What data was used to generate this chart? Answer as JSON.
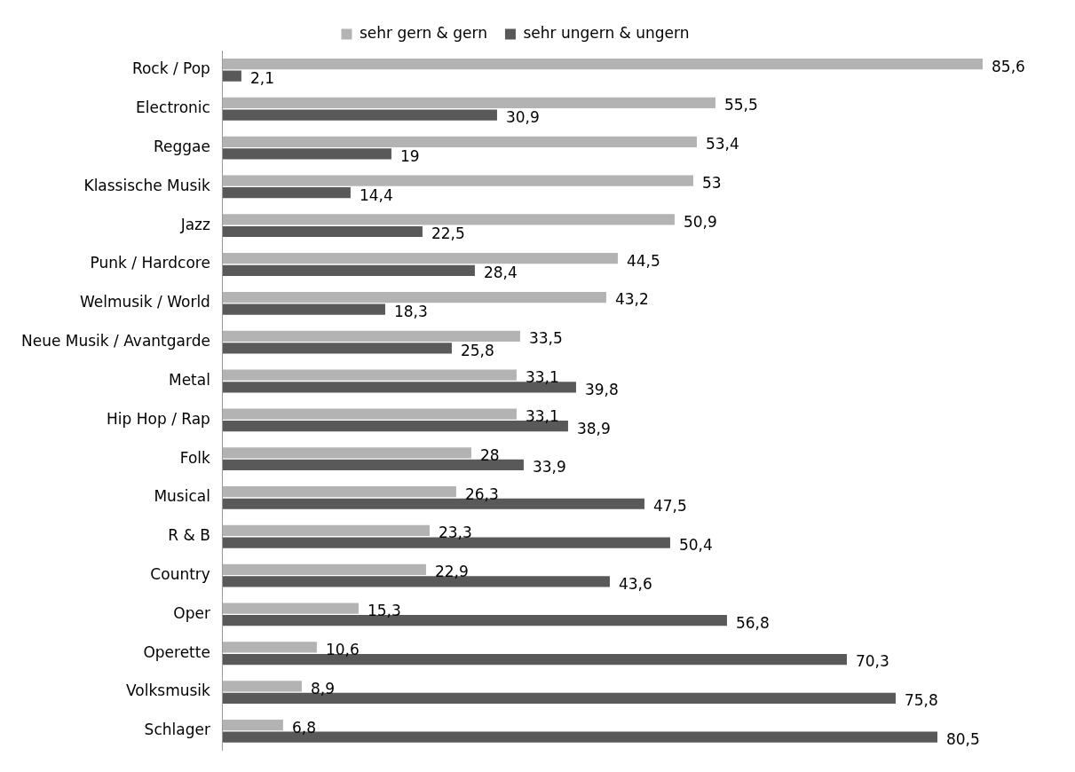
{
  "chart_data": {
    "type": "bar",
    "orientation": "horizontal",
    "categories": [
      "Rock / Pop",
      "Electronic",
      "Reggae",
      "Klassische Musik",
      "Jazz",
      "Punk / Hardcore",
      "Welmusik / World",
      "Neue Musik / Avantgarde",
      "Metal",
      "Hip Hop / Rap",
      "Folk",
      "Musical",
      "R & B",
      "Country",
      "Oper",
      "Operette",
      "Volksmusik",
      "Schlager"
    ],
    "series": [
      {
        "name": "sehr gern & gern",
        "color": "#b3b3b3",
        "values": [
          85.6,
          55.5,
          53.4,
          53,
          50.9,
          44.5,
          43.2,
          33.5,
          33.1,
          33.1,
          28,
          26.3,
          23.3,
          22.9,
          15.3,
          10.6,
          8.9,
          6.8
        ],
        "value_labels": [
          "85,6",
          "55,5",
          "53,4",
          "53",
          "50,9",
          "44,5",
          "43,2",
          "33,5",
          "33,1",
          "33,1",
          "28",
          "26,3",
          "23,3",
          "22,9",
          "15,3",
          "10,6",
          "8,9",
          "6,8"
        ]
      },
      {
        "name": "sehr ungern & ungern",
        "color": "#595959",
        "values": [
          2.1,
          30.9,
          19,
          14.4,
          22.5,
          28.4,
          18.3,
          25.8,
          39.8,
          38.9,
          33.9,
          47.5,
          50.4,
          43.6,
          56.8,
          70.3,
          75.8,
          80.5
        ],
        "value_labels": [
          "2,1",
          "30,9",
          "19",
          "14,4",
          "22,5",
          "28,4",
          "18,3",
          "25,8",
          "39,8",
          "38,9",
          "33,9",
          "47,5",
          "50,4",
          "43,6",
          "56,8",
          "70,3",
          "75,8",
          "80,5"
        ]
      }
    ],
    "legend": "top",
    "grid": false,
    "tick_labels": "y"
  }
}
